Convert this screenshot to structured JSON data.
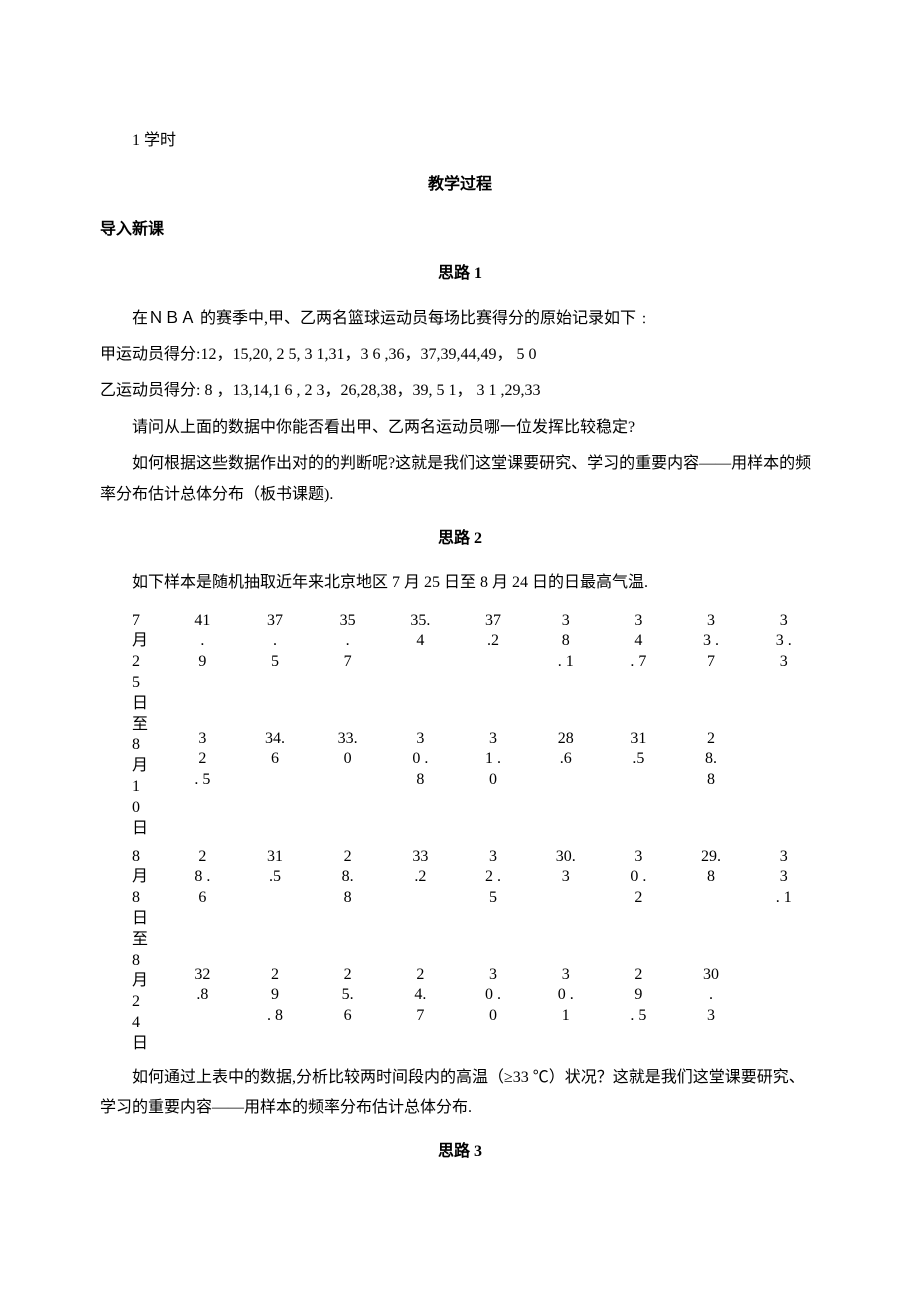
{
  "intro_line": "1 学时",
  "section_process": "教学过程",
  "section_intro": "导入新课",
  "s1_title": "思路 1",
  "s1_p1": "在ＮＢＡ 的赛季中,甲、乙两名篮球运动员每场比赛得分的原始记录如下﹕",
  "s1_p2": "甲运动员得分:12，15,20, 2 5, 3 1,31，3 6 ,36，37,39,44,49， 5 0",
  "s1_p3": "乙运动员得分: 8 ，13,14,1 6 , 2 3，26,28,38，39, 5 1， 3 1 ,29,33",
  "s1_p4": "请问从上面的数据中你能否看出甲、乙两名运动员哪一位发挥比较稳定?",
  "s1_p5": "如何根据这些数据作出对的的判断呢?这就是我们这堂课要研究、学习的重要内容——用样本的频率分布估计总体分布（板书课题).",
  "s2_title": "思路 2",
  "s2_p1": "如下样本是随机抽取近年来北京地区 7 月 25 日至 8 月 24 日的日最高气温.",
  "s2_p2": "如何通过上表中的数据,分析比较两时间段内的高温（≥33 ℃）状况？这就是我们这堂课要研究、学习的重要内容——用样本的频率分布估计总体分布.",
  "s3_title": "思路 3",
  "table": {
    "row_headers": [
      [
        "7",
        "月",
        "2",
        "5",
        "日",
        "至",
        "8",
        "月",
        "1",
        "0",
        "日"
      ],
      [
        "8",
        "月",
        "8",
        "日",
        "至",
        "8",
        "月",
        "2",
        "4",
        "日"
      ]
    ],
    "rows": [
      [
        [
          "41",
          ".",
          "9"
        ],
        [
          "37",
          ".",
          "5"
        ],
        [
          "35",
          ".",
          "7"
        ],
        [
          "35.",
          "4"
        ],
        [
          "37",
          ".2"
        ],
        [
          "3",
          "8",
          ". 1"
        ],
        [
          "3",
          "4",
          ". 7"
        ],
        [
          "3",
          "3 .",
          "7"
        ],
        [
          "3",
          "3 .",
          "3"
        ]
      ],
      [
        [
          "3",
          "2",
          ". 5"
        ],
        [
          "34.",
          "6"
        ],
        [
          "33.",
          "0"
        ],
        [
          "3",
          "0 .",
          "8"
        ],
        [
          "3",
          "1 .",
          "0"
        ],
        [
          "28",
          ".6"
        ],
        [
          "31",
          ".5"
        ],
        [
          "2",
          "8.",
          "8"
        ],
        []
      ],
      [
        [
          "2",
          "8 .",
          "6"
        ],
        [
          "31",
          ".5"
        ],
        [
          "2",
          "8.",
          "8"
        ],
        [
          "33",
          ".2"
        ],
        [
          "3",
          "2 .",
          "5"
        ],
        [
          "30.",
          "3"
        ],
        [
          "3",
          "0 .",
          "2"
        ],
        [
          "29.",
          "8"
        ],
        [
          "3",
          "3",
          ". 1"
        ]
      ],
      [
        [
          "32",
          ".8"
        ],
        [
          "2",
          "9",
          ". 8"
        ],
        [
          "2",
          "5.",
          "6"
        ],
        [
          "2",
          "4.",
          "7"
        ],
        [
          "3",
          "0 .",
          "0"
        ],
        [
          "3",
          "0 .",
          "1"
        ],
        [
          "2",
          "9",
          ". 5"
        ],
        [
          "30",
          ".",
          "3"
        ],
        []
      ]
    ]
  }
}
